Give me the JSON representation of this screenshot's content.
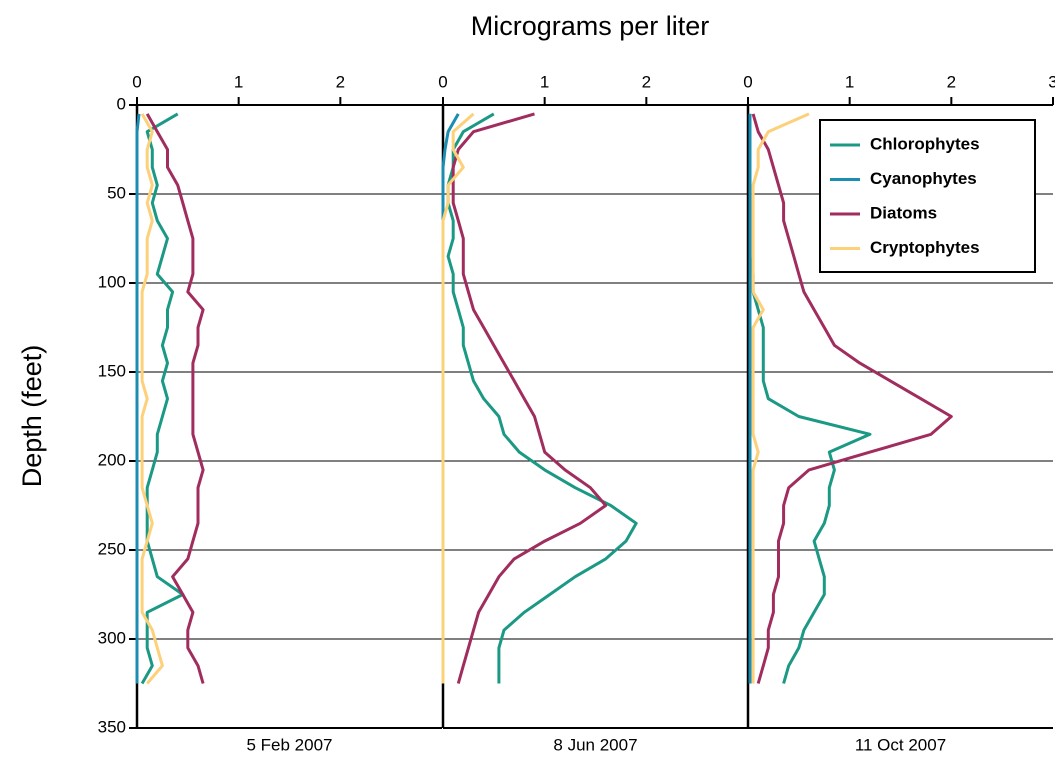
{
  "chart_data": [
    {
      "type": "line",
      "title": "Micrograms per liter",
      "ylabel": "Depth (feet)",
      "xlabel": "5 Feb 2007",
      "xlim": [
        0,
        3
      ],
      "xticks": [
        0,
        1,
        2
      ],
      "ylim": [
        0,
        350
      ],
      "yticks": [
        0,
        50,
        100,
        150,
        200,
        250,
        300,
        350
      ],
      "y_inverted": true,
      "grid": true,
      "y": [
        5,
        15,
        25,
        35,
        45,
        55,
        65,
        75,
        85,
        95,
        105,
        115,
        125,
        135,
        145,
        155,
        165,
        175,
        185,
        195,
        205,
        215,
        225,
        235,
        245,
        255,
        265,
        275,
        285,
        295,
        305,
        315,
        325
      ],
      "series": [
        {
          "name": "Chlorophytes",
          "color": "#1b9985",
          "values": [
            0.4,
            0.1,
            0.15,
            0.15,
            0.2,
            0.15,
            0.2,
            0.3,
            0.25,
            0.2,
            0.35,
            0.3,
            0.3,
            0.25,
            0.3,
            0.25,
            0.3,
            0.25,
            0.2,
            0.2,
            0.15,
            0.1,
            0.1,
            0.1,
            0.1,
            0.15,
            0.2,
            0.45,
            0.1,
            0.1,
            0.1,
            0.15,
            0.05
          ]
        },
        {
          "name": "Cyanophytes",
          "color": "#1a8db0",
          "values": [
            0.02,
            0,
            0,
            0,
            0,
            0,
            0,
            0,
            0,
            0,
            0,
            0,
            0,
            0,
            0,
            0,
            0,
            0,
            0,
            0,
            0,
            0,
            0,
            0,
            0,
            0,
            0,
            0,
            0,
            0,
            0,
            0,
            0
          ]
        },
        {
          "name": "Diatoms",
          "color": "#a02d5e",
          "values": [
            0.1,
            0.2,
            0.3,
            0.3,
            0.4,
            0.45,
            0.5,
            0.55,
            0.55,
            0.55,
            0.5,
            0.65,
            0.6,
            0.6,
            0.55,
            0.55,
            0.55,
            0.55,
            0.55,
            0.6,
            0.65,
            0.6,
            0.6,
            0.6,
            0.55,
            0.5,
            0.35,
            0.45,
            0.55,
            0.5,
            0.5,
            0.6,
            0.65
          ]
        },
        {
          "name": "Cryptophytes",
          "color": "#fdd07a",
          "values": [
            0.05,
            0.15,
            0.1,
            0.1,
            0.15,
            0.1,
            0.15,
            0.1,
            0.1,
            0.1,
            0.05,
            0.05,
            0.05,
            0.05,
            0.05,
            0.05,
            0.1,
            0.05,
            0.05,
            0.05,
            0.05,
            0.05,
            0.1,
            0.15,
            0.1,
            0.05,
            0.05,
            0.05,
            0.05,
            0.15,
            0.2,
            0.25,
            0.1
          ]
        }
      ]
    },
    {
      "type": "line",
      "xlabel": "8 Jun 2007",
      "xlim": [
        0,
        3
      ],
      "xticks": [
        0,
        1,
        2
      ],
      "ylim": [
        0,
        350
      ],
      "y_inverted": true,
      "grid": true,
      "y": [
        5,
        15,
        25,
        35,
        45,
        55,
        65,
        75,
        85,
        95,
        105,
        115,
        125,
        135,
        145,
        155,
        165,
        175,
        185,
        195,
        205,
        215,
        225,
        235,
        245,
        255,
        265,
        275,
        285,
        295,
        305,
        315,
        325
      ],
      "series": [
        {
          "name": "Chlorophytes",
          "color": "#1b9985",
          "values": [
            0.5,
            0.2,
            0.1,
            0.1,
            0.05,
            0.05,
            0.1,
            0.1,
            0.05,
            0.1,
            0.1,
            0.15,
            0.2,
            0.2,
            0.25,
            0.3,
            0.4,
            0.55,
            0.6,
            0.75,
            1.0,
            1.3,
            1.65,
            1.9,
            1.8,
            1.6,
            1.3,
            1.05,
            0.8,
            0.6,
            0.55,
            0.55,
            0.55
          ]
        },
        {
          "name": "Cyanophytes",
          "color": "#1a8db0",
          "values": [
            0.15,
            0.05,
            0.02,
            0,
            0,
            0,
            0,
            0,
            0,
            0,
            0,
            0,
            0,
            0,
            0,
            0,
            0,
            0,
            0,
            0,
            0,
            0,
            0,
            0,
            0,
            0,
            0,
            0,
            0,
            0,
            0,
            0,
            0
          ]
        },
        {
          "name": "Diatoms",
          "color": "#a02d5e",
          "values": [
            0.9,
            0.3,
            0.15,
            0.1,
            0.1,
            0.1,
            0.15,
            0.2,
            0.2,
            0.2,
            0.25,
            0.3,
            0.4,
            0.5,
            0.6,
            0.7,
            0.8,
            0.9,
            0.95,
            1.0,
            1.2,
            1.45,
            1.6,
            1.35,
            1.0,
            0.7,
            0.55,
            0.45,
            0.35,
            0.3,
            0.25,
            0.2,
            0.15
          ]
        },
        {
          "name": "Cryptophytes",
          "color": "#fdd07a",
          "values": [
            0.3,
            0.1,
            0.1,
            0.2,
            0.05,
            0.05,
            0,
            0,
            0,
            0,
            0,
            0,
            0,
            0,
            0,
            0,
            0,
            0,
            0,
            0,
            0,
            0,
            0,
            0,
            0,
            0,
            0,
            0,
            0,
            0,
            0,
            0,
            0
          ]
        }
      ]
    },
    {
      "type": "line",
      "xlabel": "11 Oct 2007",
      "xlim": [
        0,
        3
      ],
      "xticks": [
        0,
        1,
        2,
        3
      ],
      "ylim": [
        0,
        350
      ],
      "y_inverted": true,
      "grid": true,
      "legend": "upper right",
      "y": [
        5,
        15,
        25,
        35,
        45,
        55,
        65,
        75,
        85,
        95,
        105,
        115,
        125,
        135,
        145,
        155,
        165,
        175,
        185,
        195,
        205,
        215,
        225,
        235,
        245,
        255,
        265,
        275,
        285,
        295,
        305,
        315,
        325
      ],
      "series": [
        {
          "name": "Chlorophytes",
          "color": "#1b9985",
          "values": [
            0.02,
            0.02,
            0.02,
            0.02,
            0.02,
            0.02,
            0.02,
            0.02,
            0.02,
            0.05,
            0.05,
            0.1,
            0.15,
            0.15,
            0.15,
            0.15,
            0.2,
            0.5,
            1.2,
            0.8,
            0.85,
            0.8,
            0.8,
            0.75,
            0.65,
            0.7,
            0.75,
            0.75,
            0.65,
            0.55,
            0.5,
            0.4,
            0.35
          ]
        },
        {
          "name": "Cyanophytes",
          "color": "#1a8db0",
          "values": [
            0.02,
            0.02,
            0.02,
            0.02,
            0.02,
            0.02,
            0.02,
            0.02,
            0.02,
            0.02,
            0.02,
            0.02,
            0.02,
            0.02,
            0.02,
            0.02,
            0.02,
            0.02,
            0.02,
            0.02,
            0.02,
            0.02,
            0.02,
            0.02,
            0.02,
            0.02,
            0.02,
            0.02,
            0.02,
            0.02,
            0.02,
            0.02,
            0.02
          ]
        },
        {
          "name": "Diatoms",
          "color": "#a02d5e",
          "values": [
            0.05,
            0.1,
            0.2,
            0.25,
            0.3,
            0.35,
            0.35,
            0.4,
            0.45,
            0.5,
            0.55,
            0.65,
            0.75,
            0.85,
            1.1,
            1.4,
            1.7,
            2.0,
            1.8,
            1.2,
            0.6,
            0.4,
            0.35,
            0.35,
            0.3,
            0.3,
            0.3,
            0.25,
            0.25,
            0.2,
            0.2,
            0.15,
            0.1
          ]
        },
        {
          "name": "Cryptophytes",
          "color": "#fdd07a",
          "values": [
            0.6,
            0.2,
            0.1,
            0.1,
            0.05,
            0.05,
            0.05,
            0.05,
            0.05,
            0.05,
            0.05,
            0.15,
            0.05,
            0.05,
            0.05,
            0.05,
            0.05,
            0.05,
            0.05,
            0.1,
            0.05,
            0.05,
            0.05,
            0.05,
            0.05,
            0.05,
            0.05,
            0.05,
            0.05,
            0.05,
            0.05,
            0.05,
            0.05
          ]
        }
      ]
    }
  ]
}
